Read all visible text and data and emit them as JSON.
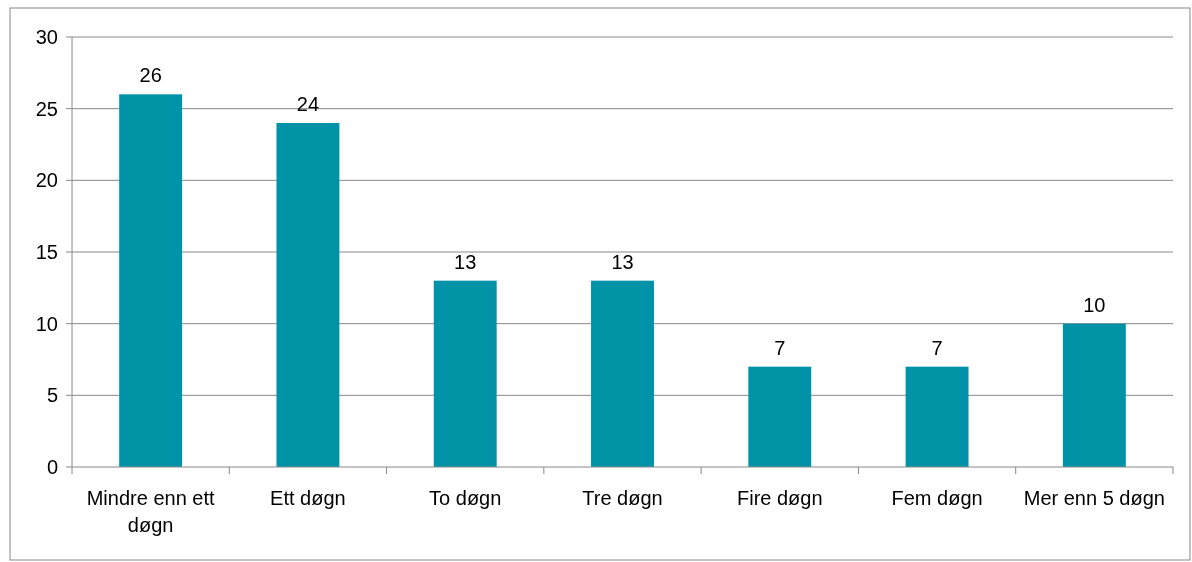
{
  "chart_data": {
    "type": "bar",
    "categories": [
      "Mindre enn ett døgn",
      "Ett døgn",
      "To døgn",
      "Tre døgn",
      "Fire døgn",
      "Fem døgn",
      "Mer enn 5 døgn"
    ],
    "values": [
      26,
      24,
      13,
      13,
      7,
      7,
      10
    ],
    "color": "#0093a8",
    "ylim": [
      0,
      30
    ],
    "yticks": [
      0,
      5,
      10,
      15,
      20,
      25,
      30
    ],
    "grid": "y",
    "data_labels": true
  }
}
